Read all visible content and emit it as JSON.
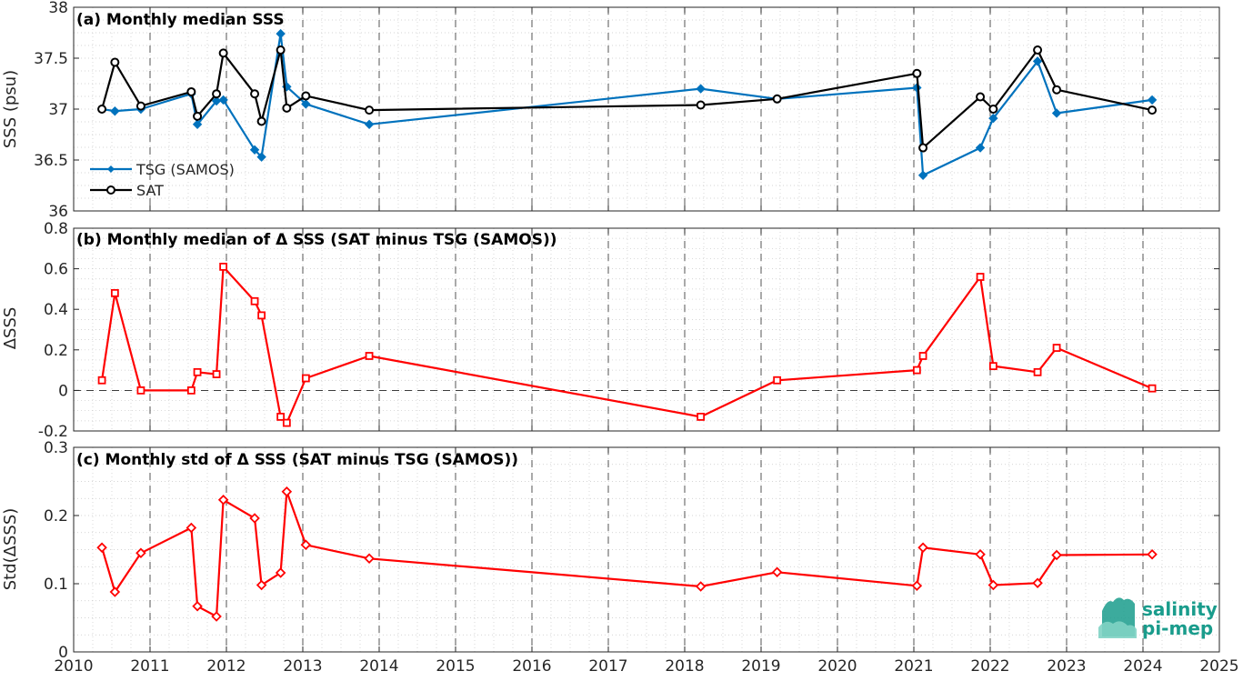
{
  "colors": {
    "tsg": "#0072BD",
    "sat": "#000000",
    "delta": "#ff0000",
    "grid": "#c8c8c8",
    "logo": "#1a9c8c"
  },
  "logo": {
    "line1": "salinity",
    "line2": "pi-mep"
  },
  "chart_data": [
    {
      "type": "line",
      "title": "(a) Monthly median SSS",
      "ylabel": "SSS (psu)",
      "xlim": [
        2010,
        2025
      ],
      "ylim": [
        36,
        38
      ],
      "yticks": [
        36,
        36.5,
        37,
        37.5,
        38
      ],
      "ytick_labels": [
        "36",
        "36.5",
        "37",
        "37.5",
        "38"
      ],
      "grid": true,
      "legend": {
        "placement": "lower-left",
        "entries": [
          "TSG (SAMOS)",
          "SAT"
        ]
      },
      "series": [
        {
          "name": "TSG (SAMOS)",
          "color": "#0072BD",
          "marker": "diamond",
          "x": [
            2010.37,
            2010.54,
            2010.88,
            2011.54,
            2011.62,
            2011.87,
            2011.96,
            2012.37,
            2012.46,
            2012.71,
            2012.79,
            2013.04,
            2013.87,
            2018.21,
            2019.21,
            2021.04,
            2021.12,
            2021.87,
            2022.04,
            2022.62,
            2022.87,
            2024.12
          ],
          "y": [
            37.0,
            36.98,
            37.0,
            37.15,
            36.85,
            37.08,
            37.09,
            36.6,
            36.53,
            37.74,
            37.22,
            37.05,
            36.85,
            37.2,
            37.1,
            37.21,
            36.35,
            36.62,
            36.91,
            37.47,
            36.96,
            37.09
          ]
        },
        {
          "name": "SAT",
          "color": "#000000",
          "marker": "circle",
          "x": [
            2010.37,
            2010.54,
            2010.88,
            2011.54,
            2011.62,
            2011.87,
            2011.96,
            2012.37,
            2012.46,
            2012.71,
            2012.79,
            2013.04,
            2013.87,
            2018.21,
            2019.21,
            2021.04,
            2021.12,
            2021.87,
            2022.04,
            2022.62,
            2022.87,
            2024.12
          ],
          "y": [
            37.0,
            37.46,
            37.03,
            37.17,
            36.93,
            37.15,
            37.55,
            37.15,
            36.88,
            37.58,
            37.01,
            37.13,
            36.99,
            37.04,
            37.1,
            37.35,
            36.62,
            37.12,
            37.0,
            37.58,
            37.19,
            36.99
          ]
        }
      ]
    },
    {
      "type": "line",
      "title": "(b) Monthly median of Δ SSS (SAT minus TSG (SAMOS))",
      "ylabel": "ΔSSS",
      "xlim": [
        2010,
        2025
      ],
      "ylim": [
        -0.2,
        0.8
      ],
      "yticks": [
        -0.2,
        0,
        0.2,
        0.4,
        0.6,
        0.8
      ],
      "ytick_labels": [
        "-0.2",
        "0",
        "0.2",
        "0.4",
        "0.6",
        "0.8"
      ],
      "grid": true,
      "zero_line": true,
      "series": [
        {
          "color": "#ff0000",
          "marker": "square",
          "x": [
            2010.37,
            2010.54,
            2010.88,
            2011.54,
            2011.62,
            2011.87,
            2011.96,
            2012.37,
            2012.46,
            2012.71,
            2012.79,
            2013.04,
            2013.87,
            2018.21,
            2019.21,
            2021.04,
            2021.12,
            2021.87,
            2022.04,
            2022.62,
            2022.87,
            2024.12
          ],
          "y": [
            0.05,
            0.48,
            0.0,
            0.0,
            0.09,
            0.08,
            0.61,
            0.44,
            0.37,
            -0.13,
            -0.16,
            0.06,
            0.17,
            -0.13,
            0.05,
            0.1,
            0.17,
            0.56,
            0.12,
            0.09,
            0.21,
            0.01
          ]
        }
      ]
    },
    {
      "type": "line",
      "title": "(c) Monthly std of Δ SSS (SAT minus TSG (SAMOS))",
      "ylabel": "Std(ΔSSS)",
      "xlim": [
        2010,
        2025
      ],
      "ylim": [
        0,
        0.3
      ],
      "yticks": [
        0,
        0.1,
        0.2,
        0.3
      ],
      "ytick_labels": [
        "0",
        "0.1",
        "0.2",
        "0.3"
      ],
      "xticks": [
        2010,
        2011,
        2012,
        2013,
        2014,
        2015,
        2016,
        2017,
        2018,
        2019,
        2020,
        2021,
        2022,
        2023,
        2024,
        2025
      ],
      "xtick_labels": [
        "2010",
        "2011",
        "2012",
        "2013",
        "2014",
        "2015",
        "2016",
        "2017",
        "2018",
        "2019",
        "2020",
        "2021",
        "2022",
        "2023",
        "2024",
        "2025"
      ],
      "grid": true,
      "series": [
        {
          "color": "#ff0000",
          "marker": "diamond",
          "x": [
            2010.37,
            2010.54,
            2010.88,
            2011.54,
            2011.62,
            2011.87,
            2011.96,
            2012.37,
            2012.46,
            2012.71,
            2012.79,
            2013.04,
            2013.87,
            2018.21,
            2019.21,
            2021.04,
            2021.12,
            2021.87,
            2022.04,
            2022.62,
            2022.87,
            2024.12
          ],
          "y": [
            0.153,
            0.088,
            0.145,
            0.182,
            0.067,
            0.052,
            0.223,
            0.196,
            0.098,
            0.116,
            0.235,
            0.157,
            0.137,
            0.096,
            0.117,
            0.097,
            0.153,
            0.143,
            0.098,
            0.101,
            0.142,
            0.143
          ]
        }
      ]
    }
  ]
}
